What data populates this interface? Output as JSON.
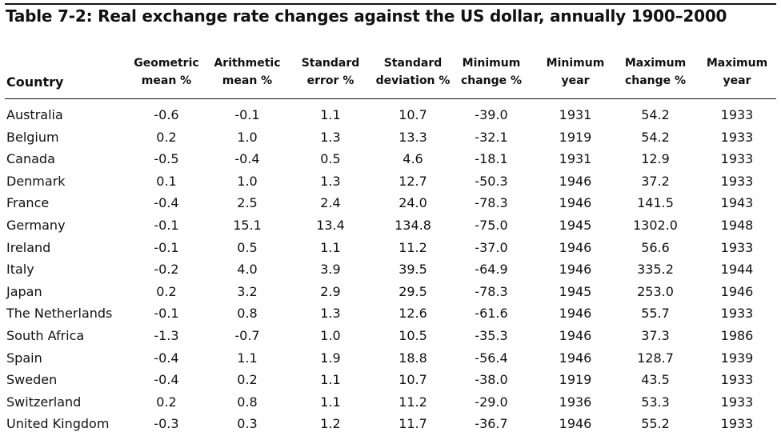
{
  "title": "Table 7-2: Real exchange rate changes against the US dollar, annually 1900–2000",
  "headers": {
    "country": "Country",
    "geo": [
      "Geometric",
      "mean %"
    ],
    "arith": [
      "Arithmetic",
      "mean %"
    ],
    "se": [
      "Standard",
      "error %"
    ],
    "sd": [
      "Standard",
      "deviation %"
    ],
    "minchg": [
      "Minimum",
      "change %"
    ],
    "minyr": [
      "Minimum",
      "year"
    ],
    "maxchg": [
      "Maximum",
      "change %"
    ],
    "maxyr": [
      "Maximum",
      "year"
    ]
  },
  "rows": [
    [
      "Australia",
      "-0.6",
      "-0.1",
      "1.1",
      "10.7",
      "-39.0",
      "1931",
      "54.2",
      "1933"
    ],
    [
      "Belgium",
      "0.2",
      "1.0",
      "1.3",
      "13.3",
      "-32.1",
      "1919",
      "54.2",
      "1933"
    ],
    [
      "Canada",
      "-0.5",
      "-0.4",
      "0.5",
      "4.6",
      "-18.1",
      "1931",
      "12.9",
      "1933"
    ],
    [
      "Denmark",
      "0.1",
      "1.0",
      "1.3",
      "12.7",
      "-50.3",
      "1946",
      "37.2",
      "1933"
    ],
    [
      "France",
      "-0.4",
      "2.5",
      "2.4",
      "24.0",
      "-78.3",
      "1946",
      "141.5",
      "1943"
    ],
    [
      "Germany",
      "-0.1",
      "15.1",
      "13.4",
      "134.8",
      "-75.0",
      "1945",
      "1302.0",
      "1948"
    ],
    [
      "Ireland",
      "-0.1",
      "0.5",
      "1.1",
      "11.2",
      "-37.0",
      "1946",
      "56.6",
      "1933"
    ],
    [
      "Italy",
      "-0.2",
      "4.0",
      "3.9",
      "39.5",
      "-64.9",
      "1946",
      "335.2",
      "1944"
    ],
    [
      "Japan",
      "0.2",
      "3.2",
      "2.9",
      "29.5",
      "-78.3",
      "1945",
      "253.0",
      "1946"
    ],
    [
      "The Netherlands",
      "-0.1",
      "0.8",
      "1.3",
      "12.6",
      "-61.6",
      "1946",
      "55.7",
      "1933"
    ],
    [
      "South Africa",
      "-1.3",
      "-0.7",
      "1.0",
      "10.5",
      "-35.3",
      "1946",
      "37.3",
      "1986"
    ],
    [
      "Spain",
      "-0.4",
      "1.1",
      "1.9",
      "18.8",
      "-56.4",
      "1946",
      "128.7",
      "1939"
    ],
    [
      "Sweden",
      "-0.4",
      "0.2",
      "1.1",
      "10.7",
      "-38.0",
      "1919",
      "43.5",
      "1933"
    ],
    [
      "Switzerland",
      "0.2",
      "0.8",
      "1.1",
      "11.2",
      "-29.0",
      "1936",
      "53.3",
      "1933"
    ],
    [
      "United Kingdom",
      "-0.3",
      "0.3",
      "1.2",
      "11.7",
      "-36.7",
      "1946",
      "55.2",
      "1933"
    ]
  ]
}
